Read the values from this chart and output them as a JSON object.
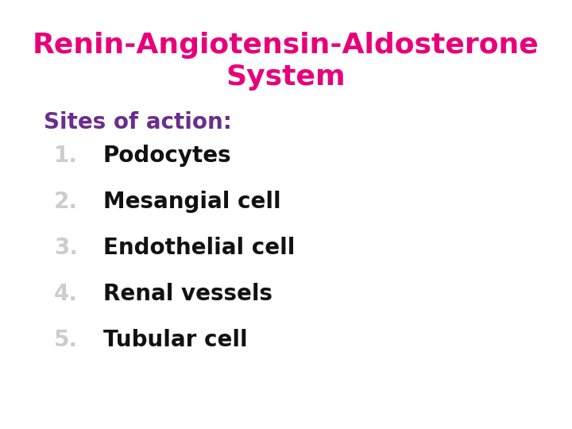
{
  "title_line1": "Renin-Angiotensin-Aldosterone",
  "title_line2": "System",
  "title_color": "#E8007A",
  "subtitle": "Sites of action:",
  "subtitle_color": "#6B2D8B",
  "items": [
    "Podocytes",
    "Mesangial cell",
    "Endothelial cell",
    "Renal vessels",
    "Tubular cell"
  ],
  "item_color": "#111111",
  "number_color": "#cccccc",
  "background_color": "#ffffff",
  "title_fontsize": 26,
  "subtitle_fontsize": 20,
  "item_fontsize": 20
}
